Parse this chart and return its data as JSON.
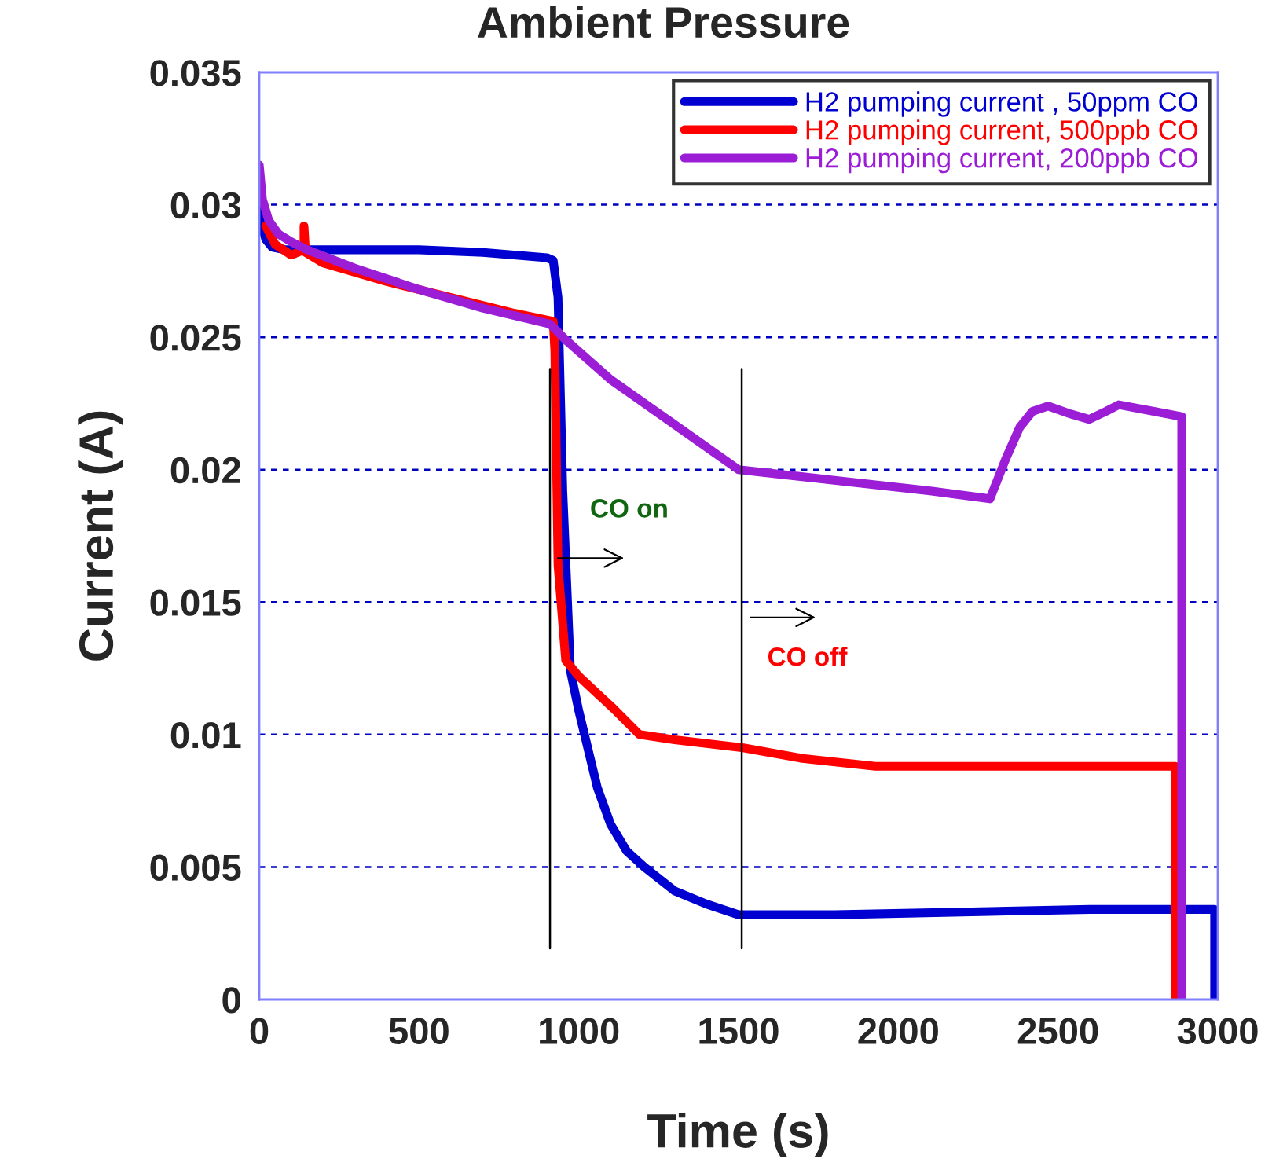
{
  "chart_data": {
    "type": "line",
    "title": "Ambient Pressure",
    "xlabel": "Time (s)",
    "ylabel": "Current (A)",
    "xlim": [
      0,
      3000
    ],
    "xticks": [
      0,
      500,
      1000,
      1500,
      2000,
      2500,
      3000
    ],
    "ylim": [
      0,
      0.035
    ],
    "yticks": [
      0,
      0.005,
      0.01,
      0.015,
      0.02,
      0.025,
      0.03,
      0.035
    ],
    "grid": "y",
    "legend": "top right",
    "marker": "none",
    "line_style": "solid",
    "series": [
      {
        "name": "H2 pumping current , 50ppm CO",
        "color": "#0000d0",
        "x": [
          0,
          10,
          20,
          40,
          80,
          150,
          300,
          500,
          700,
          900,
          920,
          935,
          950,
          974,
          1000,
          1058,
          1100,
          1150,
          1205,
          1300,
          1400,
          1500,
          1800,
          2200,
          2600,
          2890,
          2990,
          2990
        ],
        "values": [
          0.0301,
          0.0292,
          0.0287,
          0.0284,
          0.0283,
          0.0283,
          0.0283,
          0.0283,
          0.0282,
          0.028,
          0.0279,
          0.0265,
          0.0192,
          0.0124,
          0.0109,
          0.008,
          0.0066,
          0.0056,
          0.005,
          0.0041,
          0.0036,
          0.0032,
          0.0032,
          0.0033,
          0.0034,
          0.0034,
          0.0034,
          0
        ]
      },
      {
        "name": "H2 pumping current, 500ppb CO",
        "color": "#ff0000",
        "x": [
          20,
          50,
          100,
          140,
          140,
          145,
          200,
          400,
          600,
          800,
          920,
          925,
          935,
          959,
          1000,
          1107,
          1190,
          1300,
          1515,
          1700,
          1928,
          2200,
          2500,
          2868,
          2868
        ],
        "values": [
          0.0292,
          0.0285,
          0.0281,
          0.0283,
          0.0292,
          0.0282,
          0.0278,
          0.0271,
          0.0265,
          0.0259,
          0.0256,
          0.0245,
          0.0164,
          0.0128,
          0.0122,
          0.011,
          0.01,
          0.0098,
          0.0095,
          0.0091,
          0.0088,
          0.0088,
          0.0088,
          0.0088,
          0
        ]
      },
      {
        "name": "H2 pumping current, 200ppb CO",
        "color": "#9b1ed6",
        "x": [
          0,
          10,
          30,
          60,
          100,
          150,
          300,
          500,
          700,
          910,
          959,
          1100,
          1300,
          1500,
          1800,
          2100,
          2287,
          2336,
          2380,
          2420,
          2469,
          2540,
          2597,
          2650,
          2690,
          2800,
          2887,
          2887
        ],
        "values": [
          0.0315,
          0.0302,
          0.0294,
          0.0289,
          0.0286,
          0.0283,
          0.0276,
          0.0268,
          0.0261,
          0.0255,
          0.0249,
          0.0234,
          0.0217,
          0.02,
          0.0196,
          0.0192,
          0.0189,
          0.0204,
          0.0216,
          0.0222,
          0.0224,
          0.0221,
          0.0219,
          0.0222,
          0.02245,
          0.0222,
          0.022,
          0
        ]
      }
    ],
    "ref_lines": [
      {
        "axis": "x",
        "value": 910,
        "color": "#000000"
      },
      {
        "axis": "x",
        "value": 1510,
        "color": "#000000"
      }
    ],
    "annotations": [
      "CO on",
      "CO off"
    ]
  }
}
